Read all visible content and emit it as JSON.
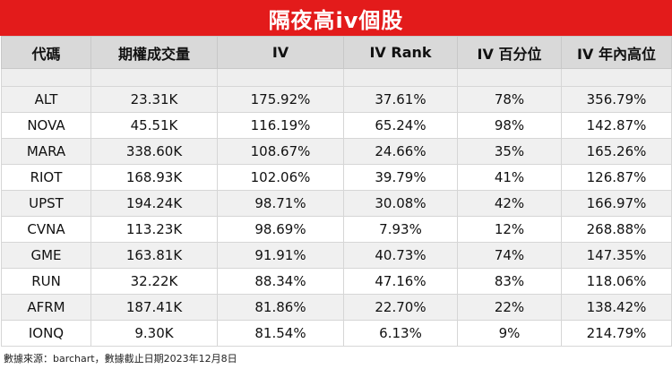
{
  "title": "隔夜高iv個股",
  "columns": [
    "代碼",
    "期權成交量",
    "IV",
    "IV Rank",
    "IV 百分位",
    "IV 年內高位"
  ],
  "rows": [
    [
      "ALT",
      "23.31K",
      "175.92%",
      "37.61%",
      "78%",
      "356.79%"
    ],
    [
      "NOVA",
      "45.51K",
      "116.19%",
      "65.24%",
      "98%",
      "142.87%"
    ],
    [
      "MARA",
      "338.60K",
      "108.67%",
      "24.66%",
      "35%",
      "165.26%"
    ],
    [
      "RIOT",
      "168.93K",
      "102.06%",
      "39.79%",
      "41%",
      "126.87%"
    ],
    [
      "UPST",
      "194.24K",
      "98.71%",
      "30.08%",
      "42%",
      "166.97%"
    ],
    [
      "CVNA",
      "113.23K",
      "98.69%",
      "7.93%",
      "12%",
      "268.88%"
    ],
    [
      "GME",
      "163.81K",
      "91.91%",
      "40.73%",
      "74%",
      "147.35%"
    ],
    [
      "RUN",
      "32.22K",
      "88.34%",
      "47.16%",
      "83%",
      "118.06%"
    ],
    [
      "AFRM",
      "187.41K",
      "81.86%",
      "22.70%",
      "22%",
      "138.42%"
    ],
    [
      "IONQ",
      "9.30K",
      "81.54%",
      "6.13%",
      "9%",
      "214.79%"
    ]
  ],
  "footer": "數據來源：barchart，數據截止日期2023年12月8日",
  "colors": {
    "title_bg": "#e31b1b",
    "header_bg": "#d9d9d9",
    "stripe": "#f0f0f0"
  }
}
